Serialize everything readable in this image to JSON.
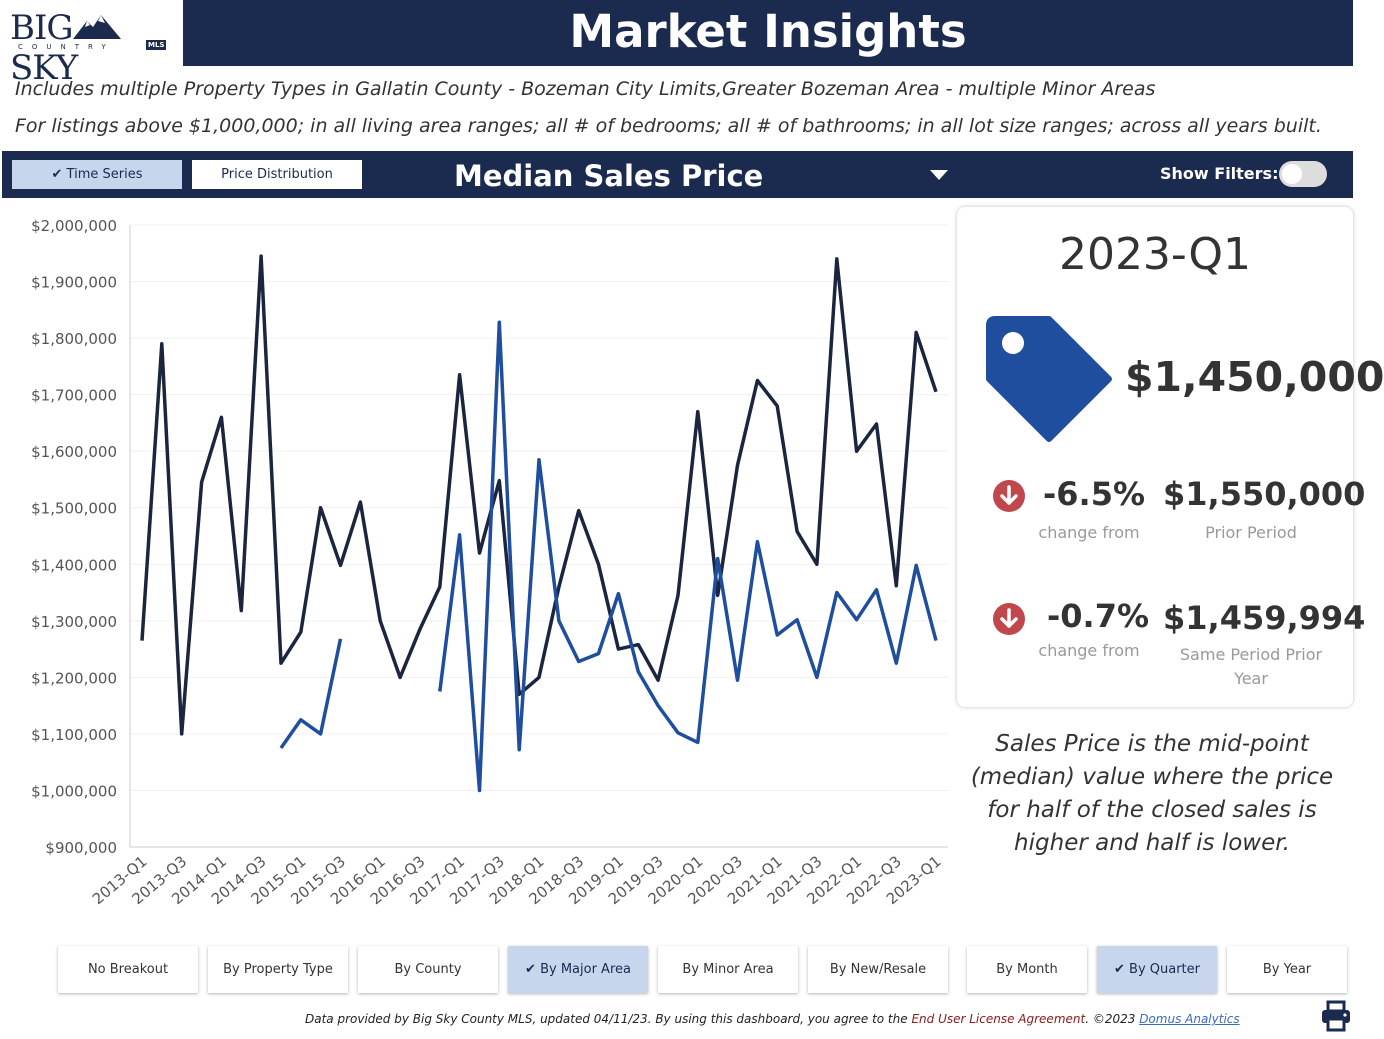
{
  "brand": {
    "logo_main": "BIG",
    "logo_main2": "SKY",
    "logo_sub": "COUNTRY",
    "logo_badge": "MLS"
  },
  "header": {
    "title": "Market Insights"
  },
  "subtitles": [
    "Includes multiple Property Types in Gallatin County - Bozeman City Limits,Greater Bozeman Area - multiple Minor Areas",
    "For listings above $1,000,000; in all living area ranges; all # of bedrooms; all # of bathrooms; in all lot size ranges; across all years built."
  ],
  "toolbar": {
    "time_series_label": "Time Series",
    "price_distribution_label": "Price Distribution",
    "metric": "Median Sales Price",
    "show_filters_label": "Show Filters:"
  },
  "kpi": {
    "period": "2023-Q1",
    "value": "$1,450,000",
    "rows": [
      {
        "pct": "-6.5%",
        "ref_value": "$1,550,000",
        "cap_left": "change from",
        "cap_right": "Prior Period"
      },
      {
        "pct": "-0.7%",
        "ref_value": "$1,459,994",
        "cap_left": "change from",
        "cap_right_1": "Same Period Prior",
        "cap_right_2": "Year"
      }
    ]
  },
  "note": "Sales Price is the mid-point (median) value where the price for half of the closed sales is higher and half is lower.",
  "breakouts": [
    "No Breakout",
    "By Property Type",
    "By County",
    "By Major Area",
    "By Minor Area",
    "By New/Resale"
  ],
  "periods": [
    "By Month",
    "By Quarter",
    "By Year"
  ],
  "footer": {
    "text1": "Data provided by Big Sky County MLS, updated 04/11/23.  By using this dashboard, you agree to the ",
    "license": "End User License Agreement",
    "text2": ".  ©2023 ",
    "company": "Domus Analytics"
  },
  "colors": {
    "navy": "#1b2a4f",
    "dark_series": "#1c2540",
    "blue_series": "#1f4e9e",
    "accent": "#c7d6ec",
    "down": "#c0474b",
    "tag": "#1f4e9e"
  },
  "chart_data": {
    "type": "line",
    "ylim": [
      900000,
      2000000
    ],
    "yticks": [
      "$900,000",
      "$1,000,000",
      "$1,100,000",
      "$1,200,000",
      "$1,300,000",
      "$1,400,000",
      "$1,500,000",
      "$1,600,000",
      "$1,700,000",
      "$1,800,000",
      "$1,900,000",
      "$2,000,000"
    ],
    "tick_labels": [
      "2013-Q1",
      "2013-Q3",
      "2014-Q1",
      "2014-Q3",
      "2015-Q1",
      "2015-Q3",
      "2016-Q1",
      "2016-Q3",
      "2017-Q1",
      "2017-Q3",
      "2018-Q1",
      "2018-Q3",
      "2019-Q1",
      "2019-Q3",
      "2020-Q1",
      "2020-Q3",
      "2021-Q1",
      "2021-Q3",
      "2022-Q1",
      "2022-Q3",
      "2023-Q1"
    ],
    "x": [
      "2013-Q1",
      "2013-Q2",
      "2013-Q3",
      "2013-Q4",
      "2014-Q1",
      "2014-Q2",
      "2014-Q3",
      "2014-Q4",
      "2015-Q1",
      "2015-Q2",
      "2015-Q3",
      "2015-Q4",
      "2016-Q1",
      "2016-Q2",
      "2016-Q3",
      "2016-Q4",
      "2017-Q1",
      "2017-Q2",
      "2017-Q3",
      "2017-Q4",
      "2018-Q1",
      "2018-Q2",
      "2018-Q3",
      "2018-Q4",
      "2019-Q1",
      "2019-Q2",
      "2019-Q3",
      "2019-Q4",
      "2020-Q1",
      "2020-Q2",
      "2020-Q3",
      "2020-Q4",
      "2021-Q1",
      "2021-Q2",
      "2021-Q3",
      "2021-Q4",
      "2022-Q1",
      "2022-Q2",
      "2022-Q3",
      "2022-Q4",
      "2023-Q1"
    ],
    "series": [
      {
        "values": [
          1265000,
          1790000,
          1100000,
          1545000,
          1660000,
          1318000,
          1945000,
          1225000,
          1280000,
          1500000,
          1398000,
          1510000,
          1300000,
          1200000,
          1285000,
          1360000,
          1735000,
          1420000,
          1548000,
          1170000,
          1200000,
          1360000,
          1495000,
          1400000,
          1250000,
          1258000,
          1195000,
          1345000,
          1670000,
          1345000,
          1575000,
          1725000,
          1680000,
          1458000,
          1400000,
          1940000,
          1600000,
          1648000,
          1362000,
          1810000,
          1705000
        ]
      },
      {
        "values": [
          null,
          null,
          null,
          null,
          null,
          null,
          null,
          1075000,
          1125000,
          1100000,
          1268000,
          null,
          null,
          null,
          null,
          1175000,
          1452000,
          1000000,
          1828000,
          1072000,
          1585000,
          1300000,
          1228000,
          1242000,
          1348000,
          1210000,
          1150000,
          1102000,
          1085000,
          1410000,
          1195000,
          1440000,
          1275000,
          1302000,
          1200000,
          1350000,
          1302000,
          1355000,
          1225000,
          1398000,
          1265000
        ]
      }
    ]
  }
}
